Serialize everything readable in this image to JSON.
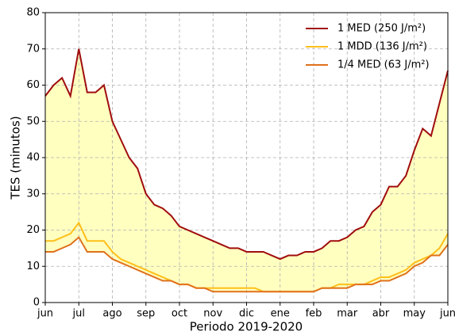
{
  "chart_data": {
    "type": "line",
    "x_label": "Periodo 2019-2020",
    "y_label": "TES (minutos)",
    "x": [
      0,
      0.25,
      0.5,
      0.75,
      1,
      1.25,
      1.5,
      1.75,
      2,
      2.25,
      2.5,
      2.75,
      3,
      3.25,
      3.5,
      3.75,
      4,
      4.25,
      4.5,
      4.75,
      5,
      5.25,
      5.5,
      5.75,
      6,
      6.25,
      6.5,
      6.75,
      7,
      7.25,
      7.5,
      7.75,
      8,
      8.25,
      8.5,
      8.75,
      9,
      9.25,
      9.5,
      9.75,
      10,
      10.25,
      10.5,
      10.75,
      11,
      11.25,
      11.5,
      11.75,
      12
    ],
    "xlim": [
      0,
      12
    ],
    "xticks": [
      {
        "value": 0,
        "label": "jun"
      },
      {
        "value": 1,
        "label": "jul"
      },
      {
        "value": 2,
        "label": "ago"
      },
      {
        "value": 3,
        "label": "sep"
      },
      {
        "value": 4,
        "label": "oct"
      },
      {
        "value": 5,
        "label": "nov"
      },
      {
        "value": 6,
        "label": "dic"
      },
      {
        "value": 7,
        "label": "ene"
      },
      {
        "value": 8,
        "label": "feb"
      },
      {
        "value": 9,
        "label": "mar"
      },
      {
        "value": 10,
        "label": "abr"
      },
      {
        "value": 11,
        "label": "may"
      },
      {
        "value": 12,
        "label": "jun"
      }
    ],
    "ylim": [
      0,
      80
    ],
    "yticks": [
      0,
      10,
      20,
      30,
      40,
      50,
      60,
      70,
      80
    ],
    "grid": true,
    "legend": "upper right",
    "fill_between": [
      0,
      2
    ],
    "fill_color": "#ffffc0",
    "series": [
      {
        "name": "1 MED (250 J/m²)",
        "color": "#a00d0d",
        "values": [
          57,
          60,
          62,
          57,
          70,
          58,
          58,
          60,
          50,
          45,
          40,
          37,
          30,
          27,
          26,
          24,
          21,
          20,
          19,
          18,
          17,
          16,
          15,
          15,
          14,
          14,
          14,
          13,
          12,
          13,
          13,
          14,
          14,
          15,
          17,
          17,
          18,
          20,
          21,
          25,
          27,
          32,
          32,
          35,
          42,
          48,
          46,
          55,
          64
        ]
      },
      {
        "name": "1 MDD (136 J/m²)",
        "color": "#ffbf1a",
        "values": [
          17,
          17,
          18,
          19,
          22,
          17,
          17,
          17,
          14,
          12,
          11,
          10,
          9,
          8,
          7,
          6,
          5,
          5,
          4,
          4,
          4,
          4,
          4,
          4,
          4,
          4,
          3,
          3,
          3,
          3,
          3,
          3,
          3,
          4,
          4,
          5,
          5,
          5,
          5,
          6,
          7,
          7,
          8,
          9,
          11,
          12,
          13,
          15,
          19
        ]
      },
      {
        "name": "1/4 MED (63 J/m²)",
        "color": "#e0701c",
        "values": [
          14,
          14,
          15,
          16,
          18,
          14,
          14,
          14,
          12,
          11,
          10,
          9,
          8,
          7,
          6,
          6,
          5,
          5,
          4,
          4,
          3,
          3,
          3,
          3,
          3,
          3,
          3,
          3,
          3,
          3,
          3,
          3,
          3,
          4,
          4,
          4,
          4,
          5,
          5,
          5,
          6,
          6,
          7,
          8,
          10,
          11,
          13,
          13,
          16
        ]
      }
    ]
  }
}
